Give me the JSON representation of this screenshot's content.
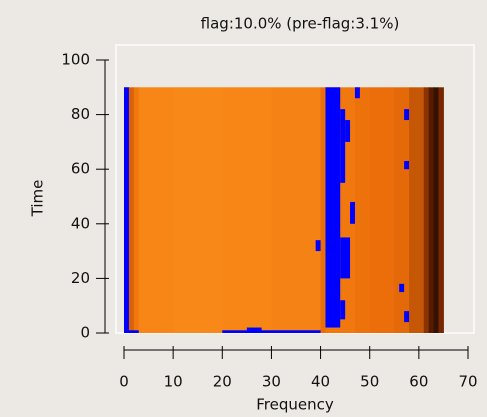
{
  "chart_data": {
    "type": "heatmap",
    "title": "flag:10.0% (pre-flag:3.1%)",
    "xlabel": "Frequency",
    "ylabel": "Time",
    "xlim": [
      0,
      70
    ],
    "ylim": [
      0,
      100
    ],
    "xticks": [
      0,
      10,
      20,
      30,
      40,
      50,
      60,
      70
    ],
    "yticks": [
      0,
      20,
      40,
      60,
      80,
      100
    ],
    "xbins": [
      0,
      1,
      2,
      3,
      10,
      20,
      30,
      40,
      41,
      47,
      50,
      55,
      58,
      61,
      62,
      63,
      64,
      65
    ],
    "ybins": [
      0,
      90
    ],
    "values": [
      0.5,
      0.55,
      0.65,
      0.72,
      0.73,
      0.72,
      0.7,
      0.6,
      0.65,
      0.62,
      0.6,
      0.58,
      0.5,
      0.35,
      0.2,
      0.1,
      0.3
    ],
    "flag_color": "#0000ff",
    "flags": [
      {
        "x": [
          0,
          1
        ],
        "y": [
          0,
          90
        ]
      },
      {
        "x": [
          0,
          3
        ],
        "y": [
          0,
          1
        ]
      },
      {
        "x": [
          20,
          40
        ],
        "y": [
          0,
          1
        ]
      },
      {
        "x": [
          25,
          28
        ],
        "y": [
          0,
          2
        ]
      },
      {
        "x": [
          41,
          44
        ],
        "y": [
          2,
          90
        ]
      },
      {
        "x": [
          44,
          45
        ],
        "y": [
          55,
          82
        ]
      },
      {
        "x": [
          45,
          46
        ],
        "y": [
          70,
          78
        ]
      },
      {
        "x": [
          44,
          46
        ],
        "y": [
          20,
          35
        ]
      },
      {
        "x": [
          44,
          45
        ],
        "y": [
          5,
          12
        ]
      },
      {
        "x": [
          46,
          47
        ],
        "y": [
          40,
          48
        ]
      },
      {
        "x": [
          47,
          48
        ],
        "y": [
          86,
          90
        ]
      },
      {
        "x": [
          39,
          40
        ],
        "y": [
          30,
          34
        ]
      },
      {
        "x": [
          57,
          58
        ],
        "y": [
          78,
          82
        ]
      },
      {
        "x": [
          57,
          58
        ],
        "y": [
          60,
          63
        ]
      },
      {
        "x": [
          56,
          57
        ],
        "y": [
          15,
          18
        ]
      },
      {
        "x": [
          57,
          58
        ],
        "y": [
          4,
          8
        ]
      }
    ]
  }
}
